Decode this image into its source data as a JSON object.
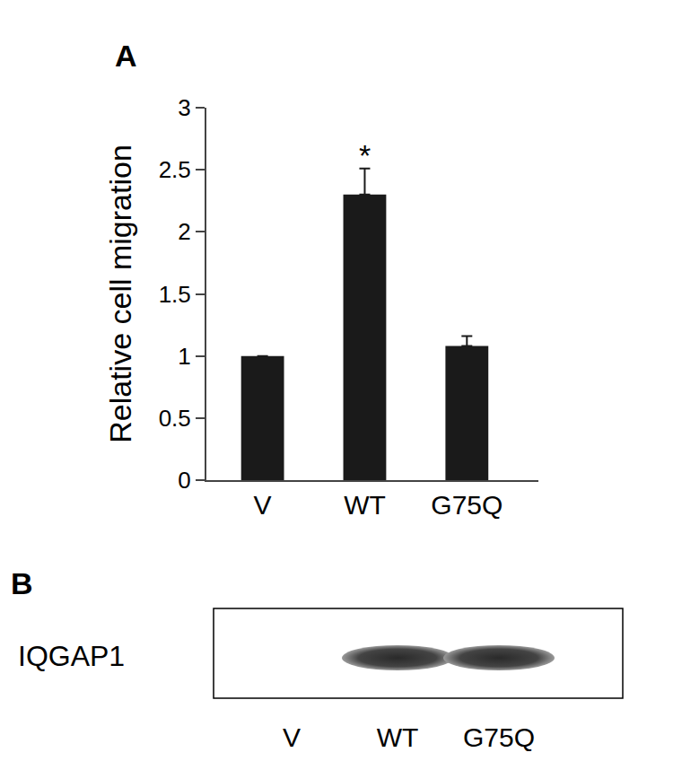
{
  "chart_data": {
    "type": "bar",
    "panel": "A",
    "y_label": "Relative cell migration",
    "categories": [
      "V",
      "WT",
      "G75Q"
    ],
    "values": [
      1.0,
      2.3,
      1.08
    ],
    "errors": [
      0,
      0.21,
      0.08
    ],
    "color": "#1a1a1a",
    "ylim": [
      0,
      3
    ],
    "yticks": [
      0,
      0.5,
      1,
      1.5,
      2,
      2.5,
      3
    ],
    "grid": false,
    "annotations": [
      {
        "text": "*",
        "category": "WT"
      }
    ]
  },
  "blot": {
    "panel": "B",
    "protein": "IQGAP1",
    "lanes": [
      "V",
      "WT",
      "G75Q"
    ],
    "band_present": [
      false,
      true,
      true
    ]
  }
}
